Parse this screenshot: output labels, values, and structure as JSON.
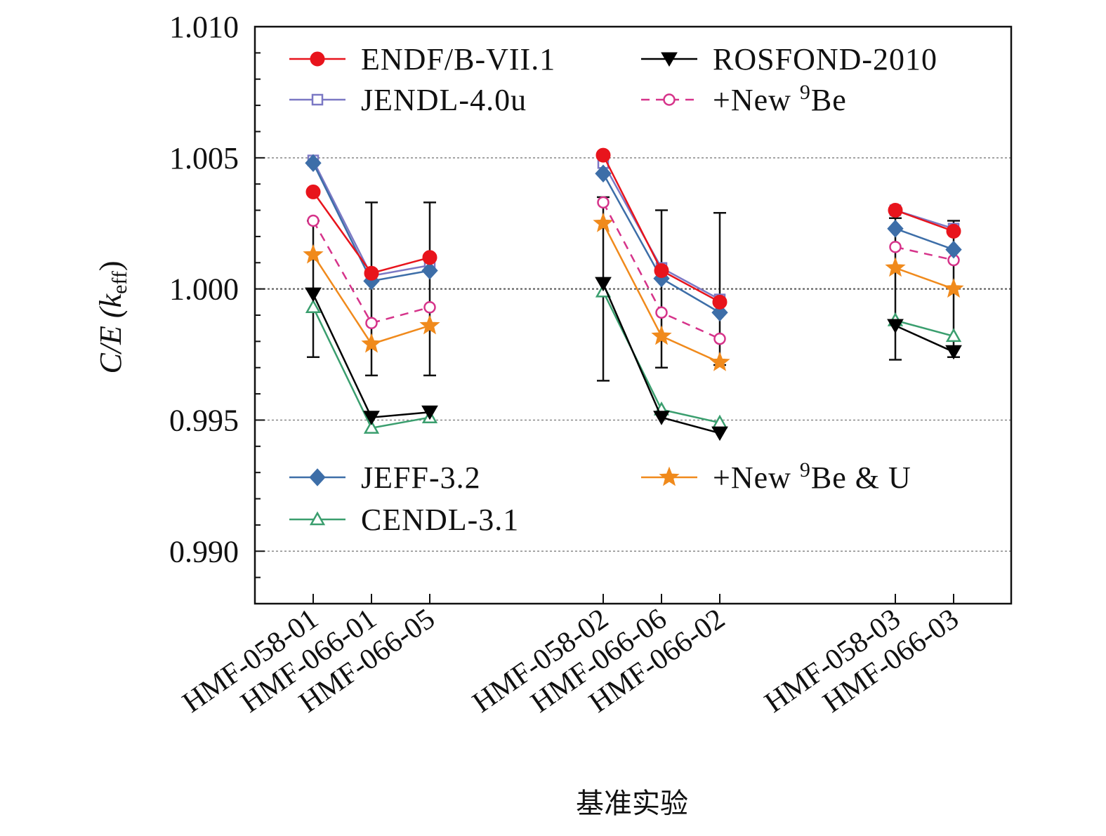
{
  "chart_data": {
    "type": "line",
    "title": "",
    "xlabel": "基准实验",
    "ylabel": {
      "main": "C/E (",
      "var": "k",
      "sub": "eff",
      "close": ")"
    },
    "ylim": [
      0.988,
      1.01
    ],
    "yticks": [
      1.01,
      1.005,
      1.0,
      0.995,
      0.99
    ],
    "ytick_labels": [
      "1.010",
      "1.005",
      "1.000",
      "0.995",
      "0.990"
    ],
    "grid": "horizontal dotted at major ticks",
    "categories": [
      "HMF-058-01",
      "HMF-066-01",
      "HMF-066-05",
      "HMF-058-02",
      "HMF-066-06",
      "HMF-066-02",
      "HMF-058-03",
      "HMF-066-03"
    ],
    "groups": [
      [
        0,
        1,
        2
      ],
      [
        3,
        4,
        5
      ],
      [
        6,
        7
      ]
    ],
    "error_bars": [
      {
        "center": 1.0,
        "low": 0.9974,
        "high": 1.0026
      },
      {
        "center": 1.0,
        "low": 0.9967,
        "high": 1.0033
      },
      {
        "center": 1.0,
        "low": 0.9967,
        "high": 1.0033
      },
      {
        "center": 1.0,
        "low": 0.9965,
        "high": 1.0035
      },
      {
        "center": 1.0,
        "low": 0.997,
        "high": 1.003
      },
      {
        "center": 1.0,
        "low": 0.9971,
        "high": 1.0029
      },
      {
        "center": 1.0,
        "low": 0.9973,
        "high": 1.0027
      },
      {
        "center": 1.0,
        "low": 0.9974,
        "high": 1.0026
      }
    ],
    "series": [
      {
        "name": "CENDL-3.1",
        "color": "#3a9e6e",
        "marker": "triangle-open",
        "dashed": false,
        "values": [
          0.9993,
          0.9947,
          0.9951,
          0.9999,
          0.9954,
          0.9949,
          0.9988,
          0.9982
        ]
      },
      {
        "name": "ROSFOND-2010",
        "color": "#000000",
        "marker": "triangle-down-filled",
        "dashed": false,
        "values": [
          0.9998,
          0.9951,
          0.9953,
          1.0002,
          0.9951,
          0.9945,
          0.9986,
          0.9976
        ]
      },
      {
        "name": "+New 9Be & U",
        "color": "#f08a1c",
        "marker": "star",
        "dashed": false,
        "values": [
          1.0013,
          0.9979,
          0.9986,
          1.0025,
          0.9982,
          0.9972,
          1.0008,
          1.0
        ]
      },
      {
        "name": "+New 9Be",
        "color": "#d6338a",
        "marker": "circle-open",
        "dashed": true,
        "values": [
          1.0026,
          0.9987,
          0.9993,
          1.0033,
          0.9991,
          0.9981,
          1.0016,
          1.0011
        ]
      },
      {
        "name": "JENDL-4.0u",
        "color": "#7b78c4",
        "marker": "square-open",
        "dashed": false,
        "values": [
          1.0049,
          1.0005,
          1.0009,
          1.0048,
          1.0008,
          0.9996,
          1.003,
          1.0023
        ]
      },
      {
        "name": "JEFF-3.2",
        "color": "#3d6ea8",
        "marker": "diamond-filled",
        "dashed": false,
        "values": [
          1.0048,
          1.0003,
          1.0007,
          1.0044,
          1.0004,
          0.9991,
          1.0023,
          1.0015
        ]
      },
      {
        "name": "ENDF/B-VII.1",
        "color": "#e8141c",
        "marker": "circle-filled",
        "dashed": false,
        "values": [
          1.0037,
          1.0006,
          1.0012,
          1.0051,
          1.0007,
          0.9995,
          1.003,
          1.0022
        ]
      }
    ],
    "legend": [
      {
        "series": "ENDF/B-VII.1",
        "label": "ENDF/B-VII.1",
        "location": "upper-left"
      },
      {
        "series": "ROSFOND-2010",
        "label": "ROSFOND-2010",
        "location": "upper-right"
      },
      {
        "series": "JENDL-4.0u",
        "label": "JENDL-4.0u",
        "location": "upper-left"
      },
      {
        "series": "+New 9Be",
        "label_main": "+New ",
        "label_sup": "9",
        "label_tail": "Be",
        "location": "upper-right"
      },
      {
        "series": "JEFF-3.2",
        "label": "JEFF-3.2",
        "location": "lower-left"
      },
      {
        "series": "+New 9Be & U",
        "label_main": "+New ",
        "label_sup": "9",
        "label_tail": "Be & U",
        "location": "lower-right"
      },
      {
        "series": "CENDL-3.1",
        "label": "CENDL-3.1",
        "location": "lower-left"
      }
    ]
  }
}
